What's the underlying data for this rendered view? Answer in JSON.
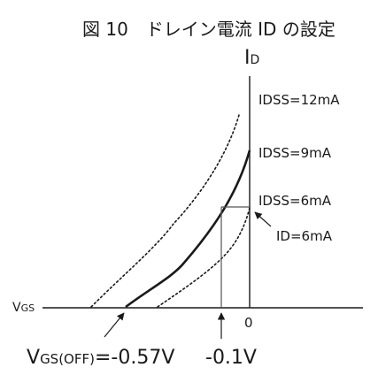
{
  "caption": "図 10　ドレイン電流 ID の設定",
  "axes": {
    "y_label_main": "I",
    "y_label_sub": "D",
    "x_label_main": "V",
    "x_label_sub": "GS",
    "origin_label": "0"
  },
  "curves": {
    "idss_12": "IDSS=12mA",
    "idss_9": "IDSS=9mA",
    "idss_6": "IDSS=6mA"
  },
  "annotations": {
    "id_point": "ID=6mA",
    "vgs_off_main": "V",
    "vgs_off_sub": "GS(OFF)",
    "vgs_off_value": "=-0.57V",
    "vgs_op": "-0.1V"
  },
  "colors": {
    "ink": "#1a1a1a",
    "grid_line": "#555555"
  }
}
